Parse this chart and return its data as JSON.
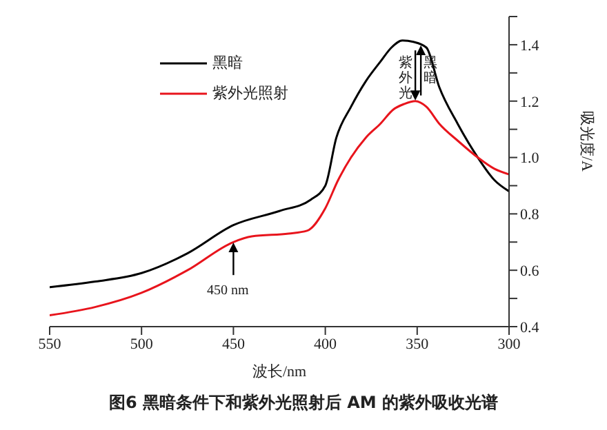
{
  "chart_data": {
    "type": "line",
    "title": "图6  黑暗条件下和紫外光照射后 AM 的紫外吸收光谱",
    "xlabel": "波长/nm",
    "ylabel": "吸光度/A",
    "legend": "top left",
    "marker": "none",
    "line_style": "solid",
    "grid": false,
    "xlim": [
      550,
      300
    ],
    "xticks": [
      550,
      500,
      450,
      400,
      350,
      300
    ],
    "ylim": [
      0.4,
      1.5
    ],
    "yticks": [
      0.4,
      {
        "value": 0.5,
        "label": null
      },
      0.6,
      {
        "value": 0.7,
        "label": null
      },
      0.8,
      {
        "value": 0.9,
        "label": null
      },
      {
        "value": 1,
        "label": "1.0"
      },
      {
        "value": 1.1,
        "label": null
      },
      1.2,
      {
        "value": 1.3,
        "label": null
      },
      1.4,
      {
        "value": 1.5,
        "label": null
      }
    ],
    "annotations": [
      {
        "text": "450 nm",
        "x": 450,
        "y": 0.71
      },
      {
        "text": "黑暗",
        "x": 347,
        "y": 1.38
      },
      {
        "text": "紫外光",
        "x": 352,
        "y": 1.22
      }
    ],
    "series": [
      {
        "name": "黑暗",
        "color": "#000000",
        "x": [
          550,
          525,
          500,
          475,
          450,
          425,
          408,
          400,
          394,
          386,
          378,
          370,
          364,
          358,
          352,
          345,
          338,
          328,
          317,
          308,
          300
        ],
        "values": [
          0.54,
          0.56,
          0.59,
          0.66,
          0.76,
          0.81,
          0.85,
          0.9,
          1.07,
          1.18,
          1.27,
          1.34,
          1.39,
          1.415,
          1.41,
          1.39,
          1.25,
          1.12,
          1.0,
          0.92,
          0.88
        ]
      },
      {
        "name": "紫外光照射",
        "color": "#e8141c",
        "x": [
          550,
          525,
          500,
          475,
          450,
          440,
          420,
          410,
          400,
          393,
          386,
          378,
          370,
          363,
          357,
          351,
          345,
          338,
          328,
          317,
          308,
          300
        ],
        "values": [
          0.44,
          0.47,
          0.52,
          0.6,
          0.7,
          0.72,
          0.73,
          0.74,
          0.82,
          0.92,
          1.0,
          1.07,
          1.12,
          1.17,
          1.19,
          1.2,
          1.18,
          1.12,
          1.06,
          1.0,
          0.96,
          0.94
        ]
      }
    ]
  }
}
